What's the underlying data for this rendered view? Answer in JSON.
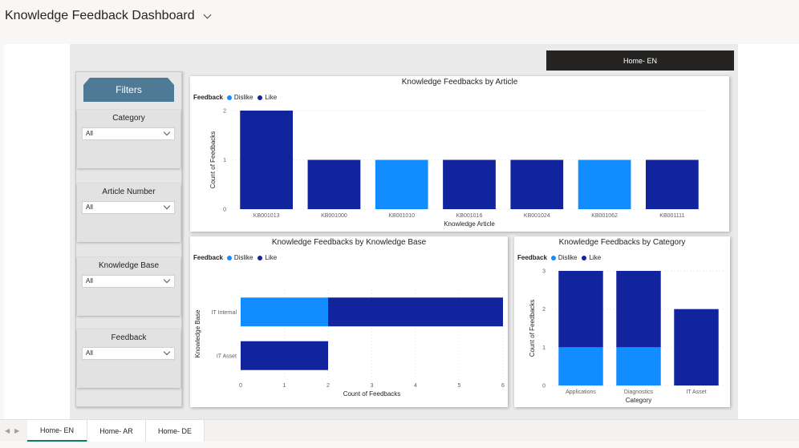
{
  "header": {
    "title": "Knowledge Feedback Dashboard"
  },
  "nav_button": {
    "label": "Home- EN"
  },
  "filters": {
    "title": "Filters",
    "slicers": [
      {
        "label": "Category",
        "value": "All"
      },
      {
        "label": "Article Number",
        "value": "All"
      },
      {
        "label": "Knowledge Base",
        "value": "All"
      },
      {
        "label": "Feedback",
        "value": "All"
      }
    ]
  },
  "legend": {
    "title": "Feedback",
    "items": [
      "Dislike",
      "Like"
    ]
  },
  "colors": {
    "dislike": "#118dff",
    "like": "#12239e"
  },
  "tabs": [
    "Home- EN",
    "Home- AR",
    "Home- DE"
  ],
  "chart_data": [
    {
      "type": "bar",
      "title": "Knowledge Feedbacks by Article",
      "xlabel": "Knowledge Article",
      "ylabel": "Count of Feedbacks",
      "categories": [
        "KB001013",
        "KB001000",
        "KB001010",
        "KB001016",
        "KB001024",
        "KB001062",
        "KB001111"
      ],
      "series": [
        {
          "name": "Dislike",
          "values": [
            0,
            0,
            1,
            0,
            0,
            1,
            0
          ]
        },
        {
          "name": "Like",
          "values": [
            2,
            1,
            0,
            1,
            1,
            0,
            1
          ]
        }
      ],
      "ylim": [
        0,
        2
      ],
      "yticks": [
        0,
        1,
        2
      ],
      "stacked": true,
      "legend_position": "top-left",
      "grid": true
    },
    {
      "type": "bar",
      "orientation": "horizontal",
      "title": "Knowledge Feedbacks by Knowledge Base",
      "xlabel": "Count of Feedbacks",
      "ylabel": "Knowledge Base",
      "categories": [
        "IT Internal",
        "IT Asset"
      ],
      "series": [
        {
          "name": "Dislike",
          "values": [
            2,
            0
          ]
        },
        {
          "name": "Like",
          "values": [
            4,
            2
          ]
        }
      ],
      "xlim": [
        0,
        6
      ],
      "xticks": [
        0,
        1,
        2,
        3,
        4,
        5,
        6
      ],
      "stacked": true,
      "legend_position": "top-left",
      "grid": true
    },
    {
      "type": "bar",
      "title": "Knowledge Feedbacks by Category",
      "xlabel": "Category",
      "ylabel": "Count of Feedbacks",
      "categories": [
        "Applications",
        "Diagnostics",
        "IT Asset"
      ],
      "series": [
        {
          "name": "Dislike",
          "values": [
            1,
            1,
            0
          ]
        },
        {
          "name": "Like",
          "values": [
            2,
            2,
            2
          ]
        }
      ],
      "ylim": [
        0,
        3
      ],
      "yticks": [
        0,
        1,
        2,
        3
      ],
      "stacked": true,
      "legend_position": "top-left",
      "grid": true
    }
  ]
}
